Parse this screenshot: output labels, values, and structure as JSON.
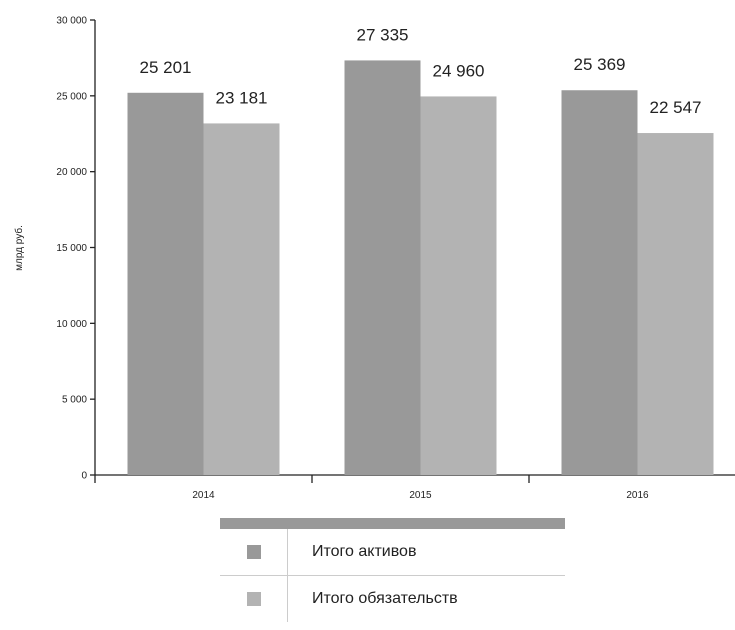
{
  "chart_data": {
    "type": "bar",
    "ylabel": "млрд руб.",
    "ylim": [
      0,
      30000
    ],
    "y_ticks": [
      0,
      5000,
      10000,
      15000,
      20000,
      25000,
      30000
    ],
    "y_tick_labels": [
      "0",
      "5 000",
      "10 000",
      "15 000",
      "20 000",
      "25 000",
      "30 000"
    ],
    "categories": [
      "2014",
      "2015",
      "2016"
    ],
    "series": [
      {
        "name": "Итого активов",
        "values": [
          25201,
          27335,
          25369
        ],
        "labels": [
          "25 201",
          "27 335",
          "25 369"
        ],
        "color": "#999999"
      },
      {
        "name": "Итого обязательств",
        "values": [
          23181,
          24960,
          22547
        ],
        "labels": [
          "23 181",
          "24 960",
          "22 547"
        ],
        "color": "#b3b3b3"
      }
    ],
    "legend": "bottom",
    "grid": false
  }
}
